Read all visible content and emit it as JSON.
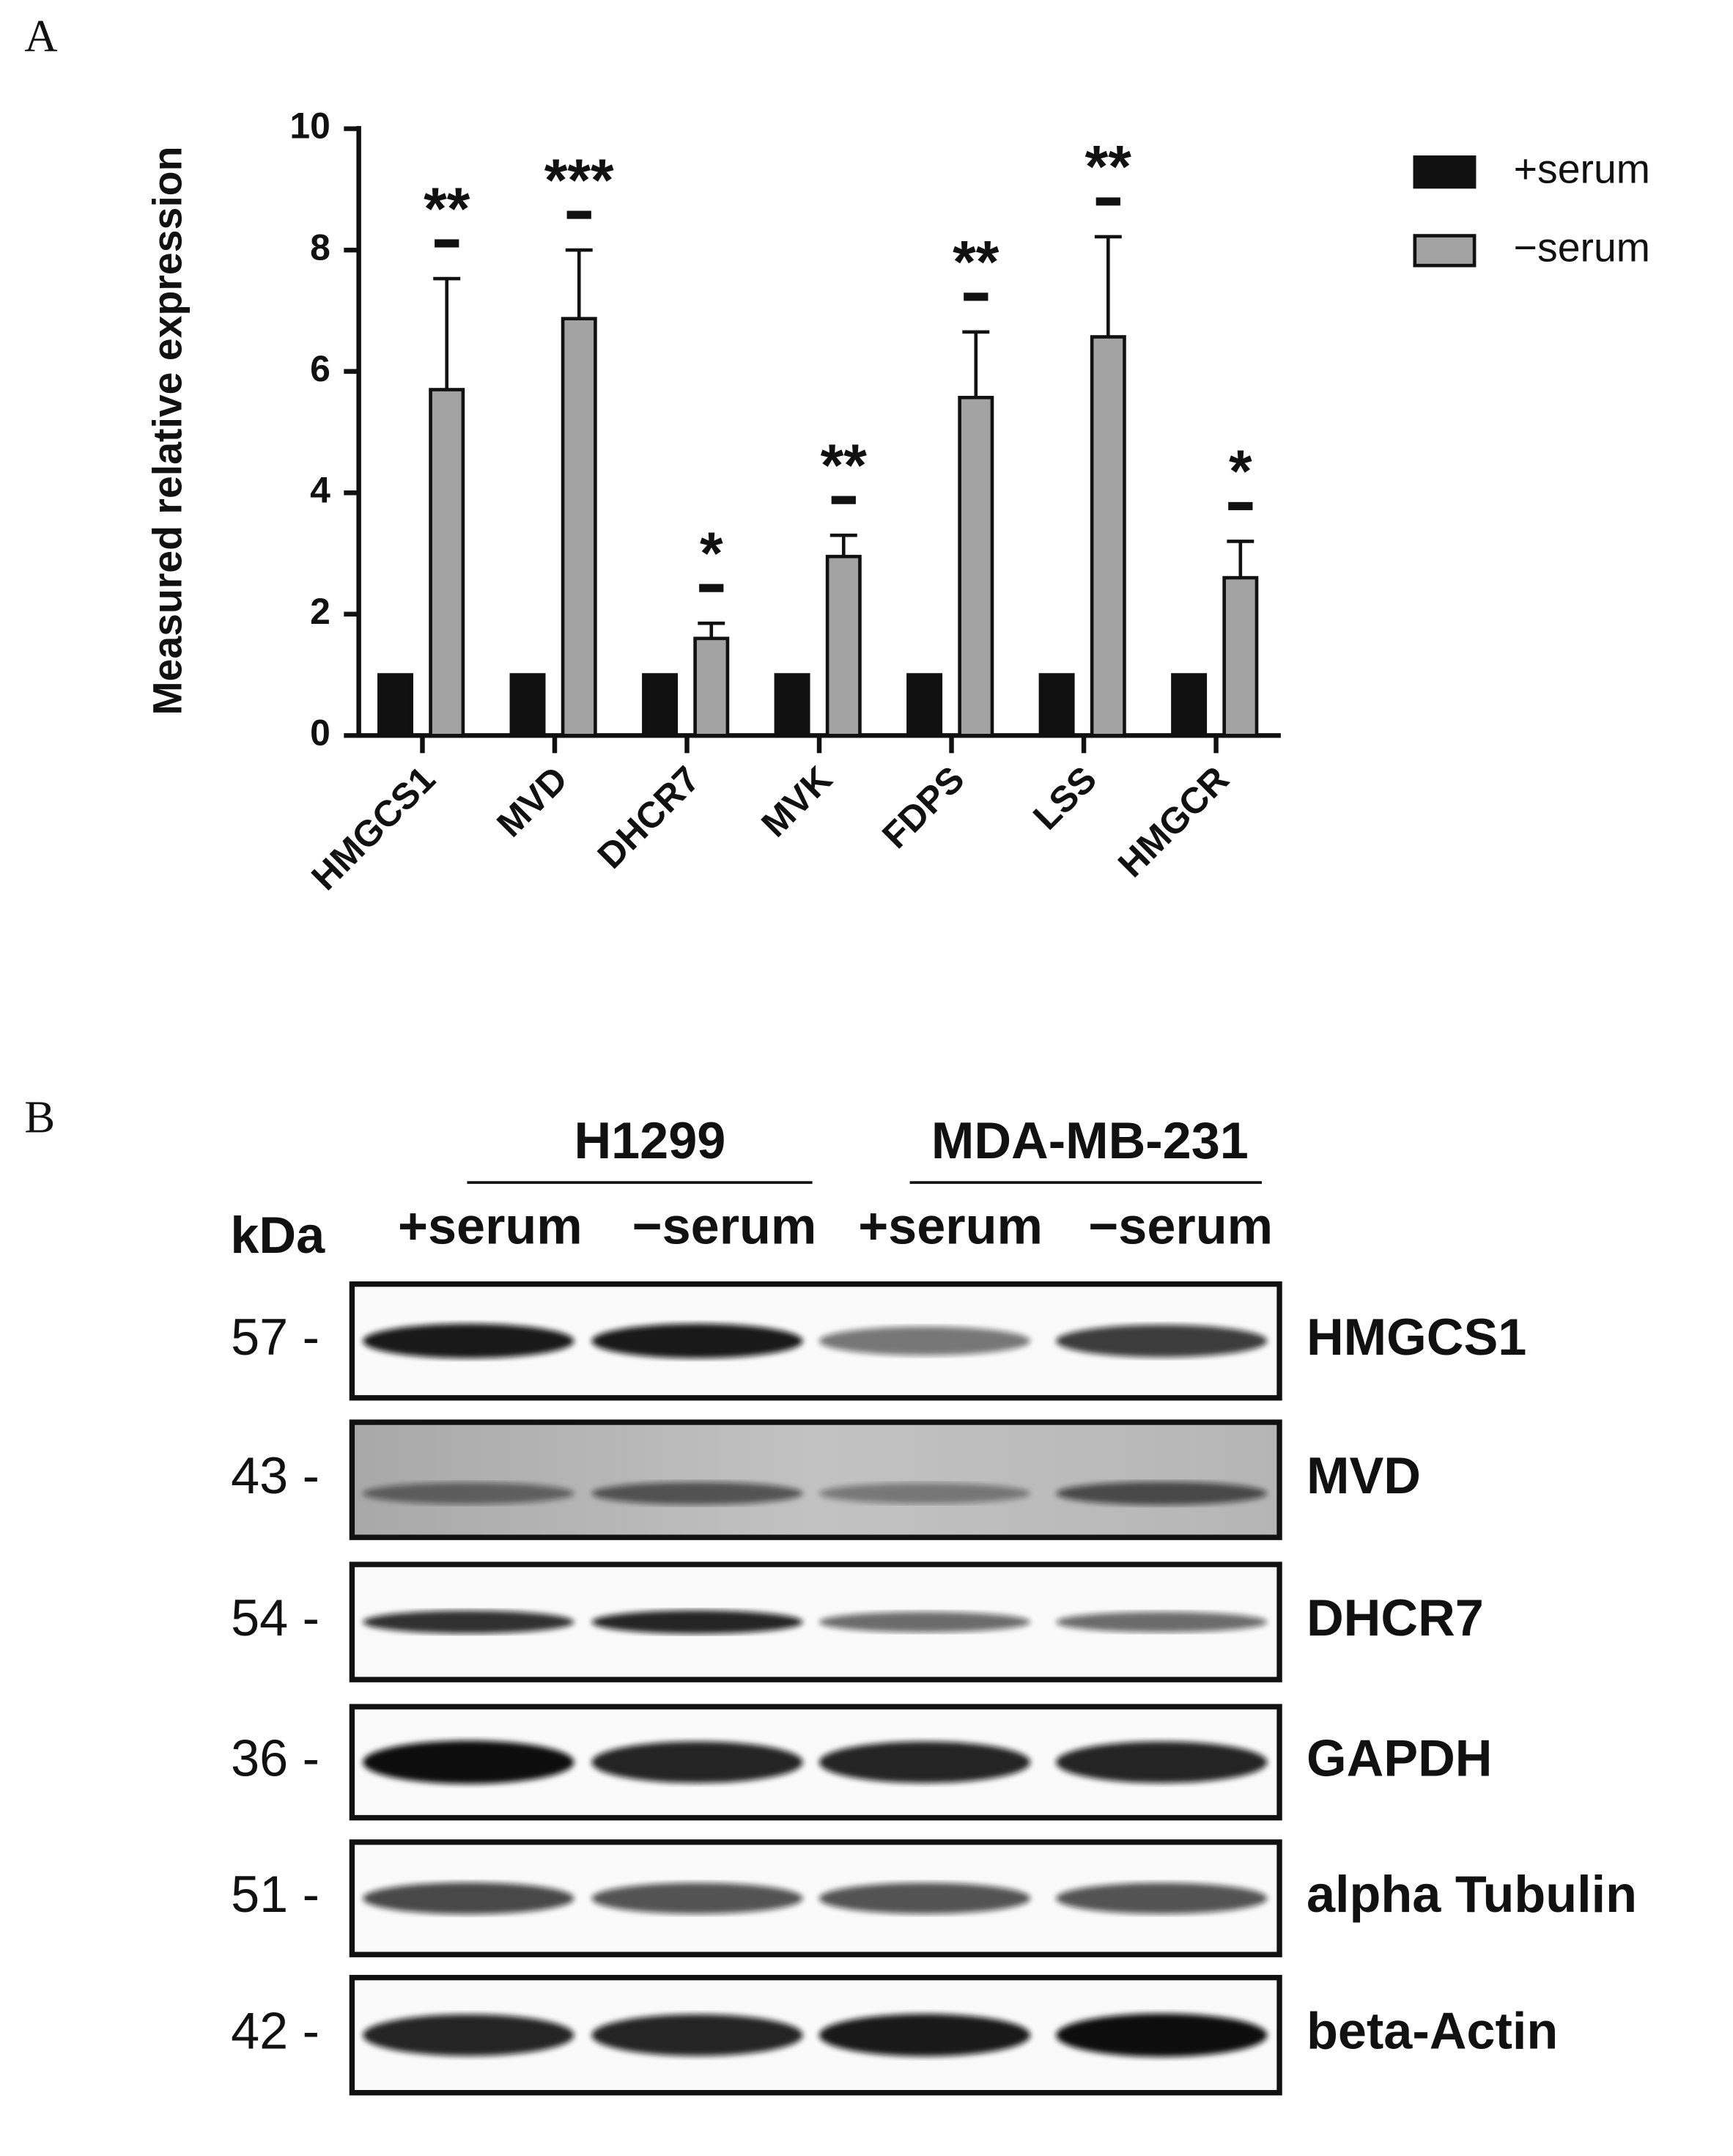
{
  "panel_labels": [
    "A",
    "B"
  ],
  "chart_data": {
    "type": "bar",
    "y_label": "Measured relative expression",
    "categories": [
      "HMGCS1",
      "MVD",
      "DHCR7",
      "MVK",
      "FDPS",
      "LSS",
      "HMGCR"
    ],
    "series": [
      {
        "name": "+serum",
        "color": "#111111",
        "values": [
          1,
          1,
          1,
          1,
          1,
          1,
          1
        ]
      },
      {
        "name": "−serum",
        "color": "#a3a3a3",
        "values": [
          5.7,
          6.87,
          1.6,
          2.95,
          5.57,
          6.57,
          2.6
        ],
        "errors": [
          1.83,
          1.13,
          0.25,
          0.35,
          1.08,
          1.65,
          0.6
        ]
      }
    ],
    "annotations": [
      "**",
      "***",
      "*",
      "**",
      "**",
      "**",
      "*"
    ],
    "ylim": [
      0,
      10
    ],
    "yticks": [
      0,
      2,
      4,
      6,
      8,
      10
    ],
    "grid": false,
    "legend": "right"
  },
  "blot": {
    "kda_label": "kDa",
    "cell_lines": [
      "H1299",
      "MDA-MB-231"
    ],
    "lanes": [
      "+serum",
      "−serum",
      "+serum",
      "−serum"
    ],
    "rows": [
      {
        "marker": "57 -",
        "protein": "HMGCS1"
      },
      {
        "marker": "43 -",
        "protein": "MVD"
      },
      {
        "marker": "54 -",
        "protein": "DHCR7"
      },
      {
        "marker": "36 -",
        "protein": "GAPDH"
      },
      {
        "marker": "51 -",
        "protein": "alpha Tubulin"
      },
      {
        "marker": "42 -",
        "protein": "beta-Actin"
      }
    ]
  }
}
